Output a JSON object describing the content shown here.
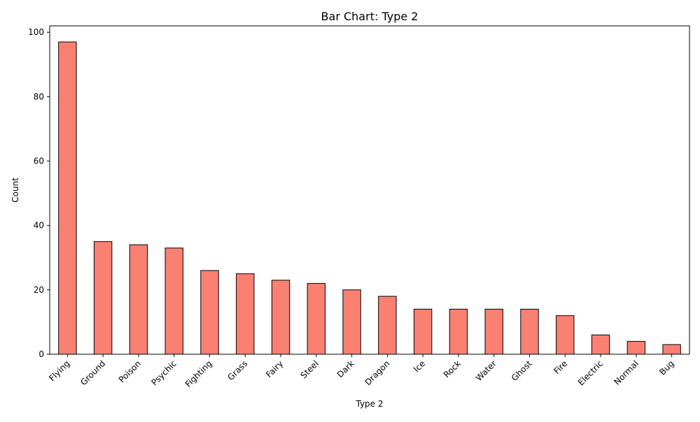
{
  "chart_data": {
    "type": "bar",
    "title": "Bar Chart: Type 2",
    "xlabel": "Type 2",
    "ylabel": "Count",
    "categories": [
      "Flying",
      "Ground",
      "Poison",
      "Psychic",
      "Fighting",
      "Grass",
      "Fairy",
      "Steel",
      "Dark",
      "Dragon",
      "Ice",
      "Rock",
      "Water",
      "Ghost",
      "Fire",
      "Electric",
      "Normal",
      "Bug"
    ],
    "values": [
      97,
      35,
      34,
      33,
      26,
      25,
      23,
      22,
      20,
      18,
      14,
      14,
      14,
      14,
      12,
      6,
      4,
      3
    ],
    "ylim": [
      0,
      102
    ],
    "yticks": [
      0,
      20,
      40,
      60,
      80,
      100
    ],
    "grid": false,
    "legend": "none",
    "bar_color": "#fa8072",
    "edge_color": "#000000"
  }
}
